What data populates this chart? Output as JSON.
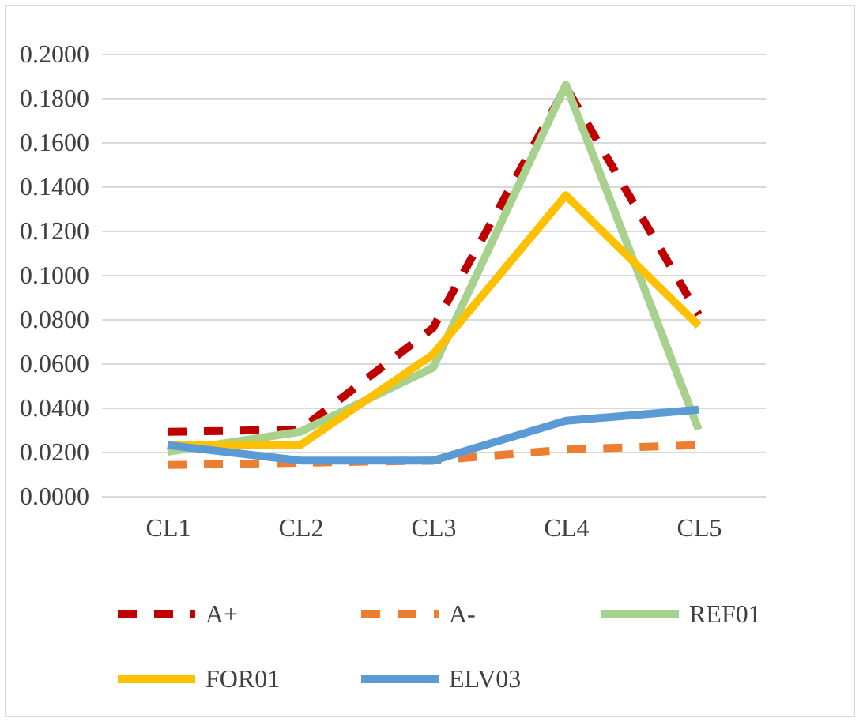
{
  "chart_data": {
    "type": "line",
    "categories": [
      "CL1",
      "CL2",
      "CL3",
      "CL4",
      "CL5"
    ],
    "series": [
      {
        "name": "A+",
        "color": "#c00000",
        "line_style": "dashed",
        "values": [
          0.029,
          0.03,
          0.076,
          0.185,
          0.082
        ]
      },
      {
        "name": "A-",
        "color": "#ed7d31",
        "line_style": "dashed",
        "values": [
          0.014,
          0.015,
          0.016,
          0.021,
          0.023
        ]
      },
      {
        "name": "REF01",
        "color": "#a9d18e",
        "line_style": "solid",
        "values": [
          0.02,
          0.029,
          0.058,
          0.186,
          0.03
        ]
      },
      {
        "name": "FOR01",
        "color": "#ffc000",
        "line_style": "solid",
        "values": [
          0.023,
          0.023,
          0.064,
          0.136,
          0.077
        ]
      },
      {
        "name": "ELV03",
        "color": "#5b9bd5",
        "line_style": "solid",
        "values": [
          0.023,
          0.016,
          0.016,
          0.034,
          0.039
        ]
      }
    ],
    "ylim": [
      0,
      0.2
    ],
    "yticks": [
      {
        "value": 0,
        "label": "0.0000"
      },
      {
        "value": 0.02,
        "label": "0.0200"
      },
      {
        "value": 0.04,
        "label": "0.0400"
      },
      {
        "value": 0.06,
        "label": "0.0600"
      },
      {
        "value": 0.08,
        "label": "0.0800"
      },
      {
        "value": 0.1,
        "label": "0.1000"
      },
      {
        "value": 0.12,
        "label": "0.1200"
      },
      {
        "value": 0.14,
        "label": "0.1400"
      },
      {
        "value": 0.16,
        "label": "0.1600"
      },
      {
        "value": 0.18,
        "label": "0.1800"
      },
      {
        "value": 0.2,
        "label": "0.2000"
      }
    ],
    "grid": "y",
    "legend": "bottom",
    "marker": "none"
  }
}
